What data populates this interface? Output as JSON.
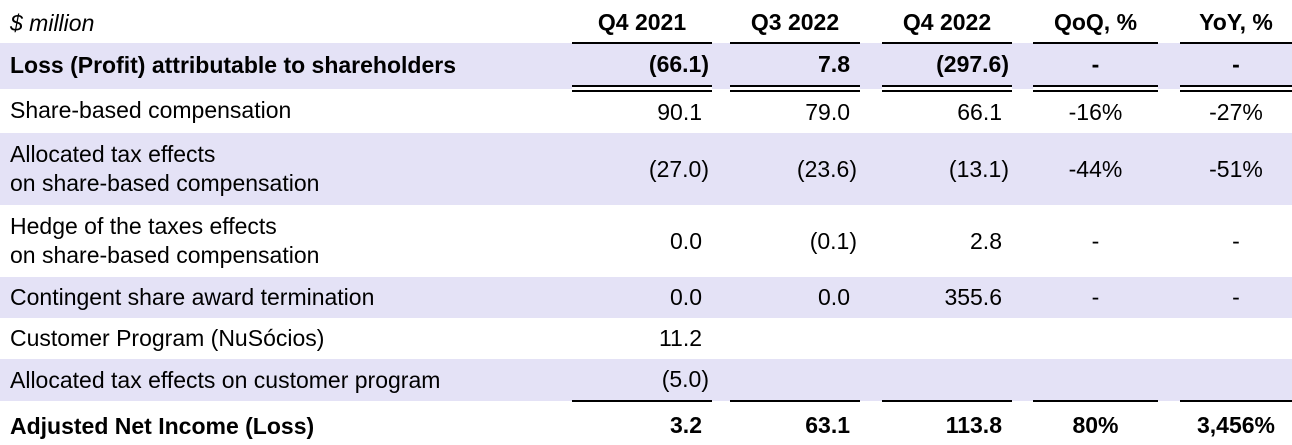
{
  "table": {
    "unit_label": "$ million",
    "columns": [
      "Q4 2021",
      "Q3 2022",
      "Q4 2022",
      "QoQ, %",
      "YoY, %"
    ],
    "rows": [
      {
        "label_lines": [
          "Loss (Profit) attributable to shareholders"
        ],
        "values": [
          "(66.1)",
          "7.8",
          "(297.6)",
          "-",
          "-"
        ],
        "bold": true,
        "shaded": true,
        "rule_below": "double"
      },
      {
        "label_lines": [
          "Share-based compensation"
        ],
        "values": [
          "90.1",
          "79.0",
          "66.1",
          "-16%",
          "-27%"
        ],
        "bold": false,
        "shaded": false,
        "rule_below": "none"
      },
      {
        "label_lines": [
          "Allocated tax effects",
          "on share-based compensation"
        ],
        "values": [
          "(27.0)",
          "(23.6)",
          "(13.1)",
          "-44%",
          "-51%"
        ],
        "bold": false,
        "shaded": true,
        "rule_below": "none"
      },
      {
        "label_lines": [
          "Hedge of the taxes effects",
          "on share-based compensation"
        ],
        "values": [
          "0.0",
          "(0.1)",
          "2.8",
          "-",
          "-"
        ],
        "bold": false,
        "shaded": false,
        "rule_below": "none"
      },
      {
        "label_lines": [
          "Contingent share award termination"
        ],
        "values": [
          "0.0",
          "0.0",
          "355.6",
          "-",
          "-"
        ],
        "bold": false,
        "shaded": true,
        "rule_below": "none"
      },
      {
        "label_lines": [
          "Customer Program (NuSócios)"
        ],
        "values": [
          "11.2",
          "",
          "",
          "",
          ""
        ],
        "bold": false,
        "shaded": false,
        "rule_below": "none"
      },
      {
        "label_lines": [
          "Allocated tax effects on customer program"
        ],
        "values": [
          "(5.0)",
          "",
          "",
          "",
          ""
        ],
        "bold": false,
        "shaded": true,
        "rule_below": "single"
      },
      {
        "label_lines": [
          "Adjusted Net Income (Loss)"
        ],
        "values": [
          "3.2",
          "63.1",
          "113.8",
          "80%",
          "3,456%"
        ],
        "bold": true,
        "shaded": false,
        "rule_below": "double"
      }
    ],
    "colors": {
      "row_shade": "#E4E2F6",
      "rule": "#000000",
      "text": "#000000"
    }
  }
}
